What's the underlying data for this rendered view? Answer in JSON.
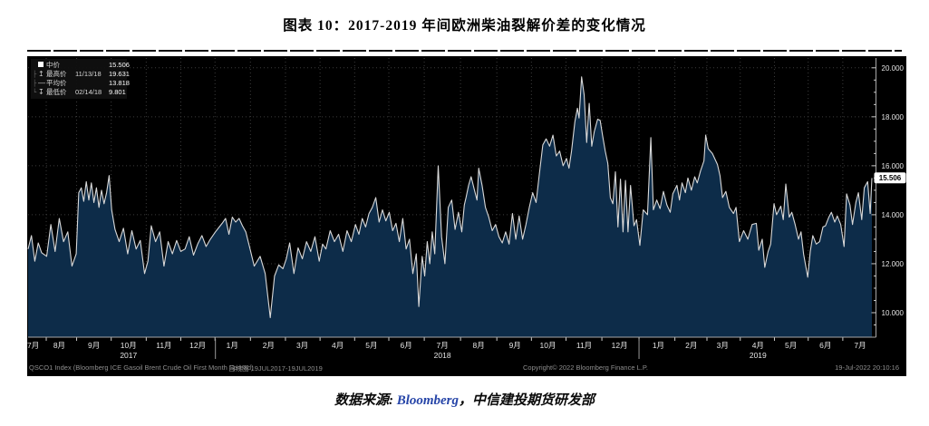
{
  "page": {
    "title": "图表 10：2017-2019 年间欧洲柴油裂解价差的变化情况",
    "source": {
      "prefix": "数据来源: ",
      "bloomberg": "Bloomberg",
      "suffix": "，中信建投期货研发部"
    }
  },
  "chart": {
    "legend": {
      "mid": {
        "label": "中价",
        "value": "15.506"
      },
      "high": {
        "label": "最高价",
        "date": "11/13/18",
        "value": "19.631"
      },
      "avg": {
        "label": "平均价",
        "value": "13.818"
      },
      "low": {
        "label": "最低价",
        "date": "02/14/18",
        "value": "9.801"
      }
    },
    "footer": {
      "ticker": "QSCO1 Index (Bloomberg ICE Gasoil Brent Crude Oil First Month Spread)",
      "range": "日线图 19JUL2017-19JUL2019",
      "copyright": "Copyright© 2022 Bloomberg Finance L.P.",
      "timestamp": "19-Jul-2022 20:10:16"
    }
  },
  "chart_data": {
    "type": "area",
    "title": "欧洲柴油裂解价差 (Bloomberg ICE Gasoil Brent Crude Oil First Month Spread)",
    "period": "19JUL2017-19JUL2019",
    "frequency": "daily",
    "ylim": [
      9.0,
      20.4
    ],
    "grid": true,
    "stats": {
      "last_label": "15.506",
      "last": 15.506,
      "high": {
        "date": "11/13/18",
        "value": 19.631
      },
      "average": 13.818,
      "low": {
        "date": "02/14/18",
        "value": 9.801
      }
    },
    "colors": {
      "background": "#000000",
      "area_fill": "#0d2c49",
      "line": "#d9d9d9",
      "grid": "#3c3c3c",
      "axis": "#a8a8a8",
      "label": "#e4e4e4",
      "tag_bg": "#ffffff",
      "tag_text": "#000000"
    },
    "y_ticks": [
      {
        "label": "10.000",
        "value": 10
      },
      {
        "label": "12.000",
        "value": 12
      },
      {
        "label": "14.000",
        "value": 14
      },
      {
        "label": "16.000",
        "value": 16
      },
      {
        "label": "18.000",
        "value": 18
      },
      {
        "label": "20.000",
        "value": 20
      }
    ],
    "y_minor_step": 0.5,
    "x_ticks": [
      {
        "pct": 0.6,
        "label": "7月"
      },
      {
        "pct": 3.7,
        "label": "8月"
      },
      {
        "pct": 7.8,
        "label": "9月"
      },
      {
        "pct": 11.9,
        "label": "10月",
        "year": "2017"
      },
      {
        "pct": 16.1,
        "label": "11月"
      },
      {
        "pct": 20.1,
        "label": "12月"
      },
      {
        "pct": 24.2,
        "label": "1月"
      },
      {
        "pct": 28.5,
        "label": "2月"
      },
      {
        "pct": 32.5,
        "label": "3月"
      },
      {
        "pct": 36.7,
        "label": "4月"
      },
      {
        "pct": 40.7,
        "label": "5月"
      },
      {
        "pct": 44.8,
        "label": "6月"
      },
      {
        "pct": 49.1,
        "label": "7月",
        "year": "2018"
      },
      {
        "pct": 53.4,
        "label": "8月"
      },
      {
        "pct": 57.7,
        "label": "9月"
      },
      {
        "pct": 61.6,
        "label": "10月"
      },
      {
        "pct": 65.9,
        "label": "11月"
      },
      {
        "pct": 70.1,
        "label": "12月"
      },
      {
        "pct": 74.7,
        "label": "1月"
      },
      {
        "pct": 78.6,
        "label": "2月"
      },
      {
        "pct": 82.3,
        "label": "3月"
      },
      {
        "pct": 86.5,
        "label": "4月",
        "year": "2019"
      },
      {
        "pct": 90.4,
        "label": "5月"
      },
      {
        "pct": 94.5,
        "label": "6月"
      },
      {
        "pct": 98.6,
        "label": "7月"
      }
    ],
    "year_dividers_pct": [
      22.2,
      72.4
    ],
    "points": [
      [
        0,
        12.6
      ],
      [
        0.4,
        13.15
      ],
      [
        0.8,
        12.1
      ],
      [
        1.2,
        12.85
      ],
      [
        1.6,
        12.45
      ],
      [
        2.2,
        12.3
      ],
      [
        2.7,
        13.6
      ],
      [
        3.2,
        12.5
      ],
      [
        3.7,
        13.85
      ],
      [
        4.2,
        12.9
      ],
      [
        4.7,
        13.3
      ],
      [
        5.2,
        11.9
      ],
      [
        5.7,
        12.4
      ],
      [
        6.0,
        14.9
      ],
      [
        6.3,
        15.1
      ],
      [
        6.6,
        14.55
      ],
      [
        6.9,
        15.35
      ],
      [
        7.2,
        14.6
      ],
      [
        7.5,
        15.3
      ],
      [
        7.8,
        14.5
      ],
      [
        8.1,
        15.1
      ],
      [
        8.4,
        14.3
      ],
      [
        8.7,
        15.0
      ],
      [
        9.0,
        14.45
      ],
      [
        9.3,
        14.9
      ],
      [
        9.6,
        15.6
      ],
      [
        9.9,
        14.2
      ],
      [
        10.3,
        13.4
      ],
      [
        10.8,
        12.9
      ],
      [
        11.3,
        13.45
      ],
      [
        11.8,
        12.4
      ],
      [
        12.3,
        13.35
      ],
      [
        12.8,
        12.6
      ],
      [
        13.3,
        12.95
      ],
      [
        13.8,
        11.6
      ],
      [
        14.2,
        12.1
      ],
      [
        14.6,
        13.55
      ],
      [
        15.1,
        12.9
      ],
      [
        15.6,
        13.3
      ],
      [
        16.1,
        11.9
      ],
      [
        16.6,
        12.9
      ],
      [
        17.1,
        12.4
      ],
      [
        17.6,
        12.95
      ],
      [
        18.1,
        12.5
      ],
      [
        18.6,
        12.6
      ],
      [
        19.1,
        13.1
      ],
      [
        19.6,
        12.35
      ],
      [
        20.1,
        12.8
      ],
      [
        20.6,
        13.15
      ],
      [
        21.1,
        12.7
      ],
      [
        21.6,
        13.0
      ],
      [
        22.2,
        13.3
      ],
      [
        23.0,
        13.65
      ],
      [
        23.4,
        13.85
      ],
      [
        23.8,
        13.2
      ],
      [
        24.2,
        13.9
      ],
      [
        24.6,
        13.7
      ],
      [
        25.0,
        13.85
      ],
      [
        25.4,
        13.55
      ],
      [
        25.8,
        13.3
      ],
      [
        26.3,
        12.6
      ],
      [
        26.8,
        11.9
      ],
      [
        27.5,
        12.3
      ],
      [
        28.1,
        11.6
      ],
      [
        28.7,
        9.8
      ],
      [
        29.2,
        11.5
      ],
      [
        29.7,
        11.95
      ],
      [
        30.2,
        11.8
      ],
      [
        30.6,
        12.2
      ],
      [
        31.0,
        12.85
      ],
      [
        31.5,
        11.6
      ],
      [
        32.0,
        12.65
      ],
      [
        32.5,
        12.2
      ],
      [
        33.0,
        12.9
      ],
      [
        33.5,
        12.5
      ],
      [
        34.0,
        13.1
      ],
      [
        34.5,
        12.1
      ],
      [
        34.9,
        12.8
      ],
      [
        35.3,
        12.6
      ],
      [
        35.8,
        13.35
      ],
      [
        36.3,
        12.9
      ],
      [
        36.8,
        13.2
      ],
      [
        37.3,
        12.5
      ],
      [
        37.8,
        13.35
      ],
      [
        38.3,
        12.9
      ],
      [
        38.8,
        13.6
      ],
      [
        39.2,
        13.2
      ],
      [
        39.6,
        13.85
      ],
      [
        40.0,
        13.5
      ],
      [
        40.4,
        14.05
      ],
      [
        40.8,
        14.3
      ],
      [
        41.2,
        14.7
      ],
      [
        41.6,
        13.7
      ],
      [
        42.0,
        14.2
      ],
      [
        42.4,
        13.75
      ],
      [
        42.8,
        14.1
      ],
      [
        43.2,
        13.35
      ],
      [
        43.6,
        13.65
      ],
      [
        44.0,
        12.9
      ],
      [
        44.4,
        13.85
      ],
      [
        44.8,
        12.6
      ],
      [
        45.2,
        13.0
      ],
      [
        45.6,
        11.6
      ],
      [
        46.0,
        12.4
      ],
      [
        46.3,
        10.25
      ],
      [
        46.7,
        12.3
      ],
      [
        47.0,
        11.5
      ],
      [
        47.3,
        12.9
      ],
      [
        47.6,
        12.0
      ],
      [
        47.9,
        13.3
      ],
      [
        48.2,
        12.4
      ],
      [
        48.6,
        16.0
      ],
      [
        49.0,
        13.1
      ],
      [
        49.4,
        12.0
      ],
      [
        49.8,
        14.3
      ],
      [
        50.2,
        14.6
      ],
      [
        50.6,
        13.4
      ],
      [
        51.0,
        14.1
      ],
      [
        51.4,
        13.3
      ],
      [
        51.7,
        14.4
      ],
      [
        51.9,
        14.7
      ],
      [
        52.2,
        15.2
      ],
      [
        52.5,
        15.55
      ],
      [
        52.9,
        15.0
      ],
      [
        53.2,
        14.6
      ],
      [
        53.4,
        15.9
      ],
      [
        53.8,
        15.2
      ],
      [
        54.2,
        14.3
      ],
      [
        54.6,
        13.9
      ],
      [
        55.0,
        13.35
      ],
      [
        55.4,
        13.6
      ],
      [
        55.8,
        13.1
      ],
      [
        56.2,
        12.85
      ],
      [
        56.6,
        13.3
      ],
      [
        57.0,
        12.8
      ],
      [
        57.4,
        14.05
      ],
      [
        57.8,
        13.0
      ],
      [
        58.2,
        13.95
      ],
      [
        58.6,
        13.0
      ],
      [
        59.0,
        13.6
      ],
      [
        59.4,
        14.3
      ],
      [
        59.8,
        14.9
      ],
      [
        60.2,
        14.5
      ],
      [
        60.6,
        15.7
      ],
      [
        61.0,
        16.85
      ],
      [
        61.4,
        17.1
      ],
      [
        61.8,
        16.8
      ],
      [
        62.2,
        17.25
      ],
      [
        62.6,
        16.4
      ],
      [
        63.0,
        16.6
      ],
      [
        63.4,
        16.0
      ],
      [
        63.8,
        16.3
      ],
      [
        64.1,
        15.9
      ],
      [
        64.4,
        16.6
      ],
      [
        64.8,
        17.8
      ],
      [
        65.1,
        18.35
      ],
      [
        65.3,
        17.95
      ],
      [
        65.6,
        19.63
      ],
      [
        65.9,
        18.9
      ],
      [
        66.2,
        16.95
      ],
      [
        66.5,
        18.55
      ],
      [
        66.8,
        16.8
      ],
      [
        67.1,
        17.4
      ],
      [
        67.5,
        17.9
      ],
      [
        67.8,
        17.85
      ],
      [
        68.1,
        17.2
      ],
      [
        68.4,
        16.6
      ],
      [
        68.7,
        16.1
      ],
      [
        69.0,
        14.7
      ],
      [
        69.3,
        14.45
      ],
      [
        69.6,
        15.75
      ],
      [
        69.9,
        13.5
      ],
      [
        70.2,
        15.45
      ],
      [
        70.5,
        13.3
      ],
      [
        70.8,
        15.4
      ],
      [
        71.1,
        13.3
      ],
      [
        71.4,
        15.2
      ],
      [
        71.8,
        13.55
      ],
      [
        72.1,
        13.8
      ],
      [
        72.5,
        12.75
      ],
      [
        72.9,
        14.2
      ],
      [
        73.4,
        14.0
      ],
      [
        73.8,
        17.15
      ],
      [
        74.1,
        14.2
      ],
      [
        74.5,
        14.6
      ],
      [
        74.9,
        14.25
      ],
      [
        75.3,
        14.95
      ],
      [
        75.7,
        14.4
      ],
      [
        76.1,
        14.1
      ],
      [
        76.4,
        14.85
      ],
      [
        76.9,
        15.2
      ],
      [
        77.2,
        14.6
      ],
      [
        77.5,
        15.3
      ],
      [
        77.9,
        14.9
      ],
      [
        78.2,
        15.5
      ],
      [
        78.6,
        15.0
      ],
      [
        79.0,
        15.55
      ],
      [
        79.3,
        15.3
      ],
      [
        79.7,
        15.8
      ],
      [
        80.1,
        16.2
      ],
      [
        80.3,
        17.25
      ],
      [
        80.6,
        16.7
      ],
      [
        81.1,
        16.5
      ],
      [
        81.7,
        16.05
      ],
      [
        82.0,
        15.6
      ],
      [
        82.3,
        14.7
      ],
      [
        82.7,
        14.95
      ],
      [
        83.1,
        14.3
      ],
      [
        83.6,
        14.05
      ],
      [
        83.9,
        14.3
      ],
      [
        84.3,
        12.9
      ],
      [
        84.8,
        13.35
      ],
      [
        85.3,
        13.0
      ],
      [
        85.8,
        13.6
      ],
      [
        86.3,
        13.65
      ],
      [
        86.6,
        12.55
      ],
      [
        87.0,
        13.0
      ],
      [
        87.3,
        11.85
      ],
      [
        87.7,
        12.5
      ],
      [
        88.0,
        12.8
      ],
      [
        88.4,
        14.45
      ],
      [
        88.7,
        14.0
      ],
      [
        89.2,
        14.35
      ],
      [
        89.5,
        13.8
      ],
      [
        89.8,
        15.25
      ],
      [
        90.2,
        13.9
      ],
      [
        90.5,
        14.1
      ],
      [
        90.9,
        13.6
      ],
      [
        91.3,
        13.0
      ],
      [
        91.6,
        13.3
      ],
      [
        91.9,
        12.4
      ],
      [
        92.4,
        11.45
      ],
      [
        92.7,
        12.5
      ],
      [
        93.0,
        13.15
      ],
      [
        93.4,
        12.8
      ],
      [
        93.8,
        12.9
      ],
      [
        94.2,
        13.5
      ],
      [
        94.5,
        13.55
      ],
      [
        94.9,
        13.9
      ],
      [
        95.2,
        14.1
      ],
      [
        95.6,
        13.7
      ],
      [
        95.9,
        13.95
      ],
      [
        96.3,
        13.6
      ],
      [
        96.7,
        12.7
      ],
      [
        97.0,
        14.85
      ],
      [
        97.4,
        14.4
      ],
      [
        97.7,
        13.6
      ],
      [
        98.1,
        14.5
      ],
      [
        98.4,
        14.9
      ],
      [
        98.8,
        13.8
      ],
      [
        99.1,
        15.1
      ],
      [
        99.5,
        15.35
      ],
      [
        99.8,
        14.05
      ],
      [
        100,
        15.5
      ]
    ]
  }
}
